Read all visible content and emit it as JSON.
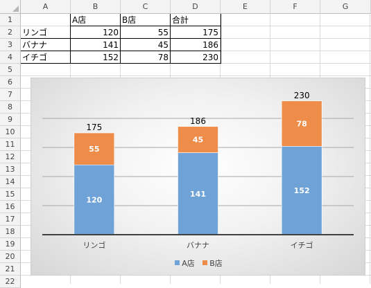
{
  "sheet": {
    "columns": [
      "A",
      "B",
      "C",
      "D",
      "E",
      "F",
      "G"
    ],
    "rows": [
      "1",
      "2",
      "3",
      "4",
      "5",
      "6",
      "7",
      "8",
      "9",
      "10",
      "11",
      "12",
      "13",
      "14",
      "15",
      "16",
      "17",
      "18",
      "19",
      "20",
      "21",
      "22"
    ],
    "table": {
      "header": [
        "",
        "A店",
        "B店",
        "合計"
      ],
      "data": [
        [
          "リンゴ",
          "120",
          "55",
          "175"
        ],
        [
          "バナナ",
          "141",
          "45",
          "186"
        ],
        [
          "イチゴ",
          "152",
          "78",
          "230"
        ]
      ]
    }
  },
  "chart_data": {
    "type": "bar",
    "stacked": true,
    "categories": [
      "リンゴ",
      "バナナ",
      "イチゴ"
    ],
    "series": [
      {
        "name": "A店",
        "values": [
          120,
          141,
          152
        ],
        "color": "#6fa3d8"
      },
      {
        "name": "B店",
        "values": [
          55,
          45,
          78
        ],
        "color": "#ee8c4a"
      }
    ],
    "totals": [
      175,
      186,
      230
    ],
    "ylim": [
      0,
      250
    ],
    "gridlines": [
      50,
      100,
      150,
      200
    ],
    "grid": true,
    "legend": "bottom",
    "title": "",
    "xlabel": "",
    "ylabel": ""
  }
}
